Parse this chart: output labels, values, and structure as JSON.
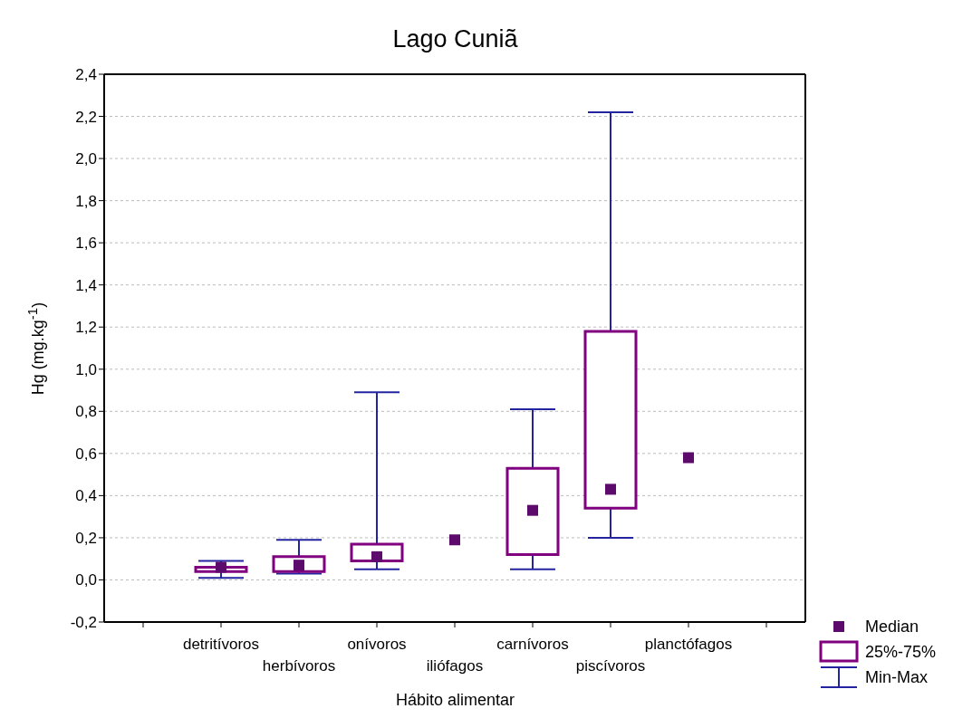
{
  "chart_data": {
    "type": "box",
    "title": "Lago Cuniã",
    "xlabel": "Hábito alimentar",
    "ylabel": "Hg (mg.kg$^{-1}$)",
    "categories": [
      "detritívoros",
      "herbívoros",
      "onívoros",
      "iliófagos",
      "carnívoros",
      "piscívoros",
      "planctófagos"
    ],
    "series": [
      {
        "type": "scatter",
        "name": "Median",
        "color": "#5c0a6c",
        "marker": "square",
        "x": [
          "detritívoros",
          "herbívoros",
          "onívoros",
          "iliófagos",
          "carnívoros",
          "piscívoros",
          "planctófagos"
        ],
        "values": [
          0.06,
          0.07,
          0.11,
          0.19,
          0.33,
          0.43,
          0.58
        ]
      },
      {
        "type": "box",
        "name": "25%-75%",
        "color": "#800080",
        "boxes": [
          {
            "low": 0.01,
            "q1": 0.04,
            "q3": 0.06,
            "high": 0.09
          },
          {
            "low": 0.03,
            "q1": 0.04,
            "q3": 0.11,
            "high": 0.19
          },
          {
            "low": 0.05,
            "q1": 0.09,
            "q3": 0.17,
            "high": 0.89
          },
          null,
          {
            "low": 0.05,
            "q1": 0.12,
            "q3": 0.53,
            "high": 0.81
          },
          {
            "low": 0.2,
            "q1": 0.34,
            "q3": 1.18,
            "high": 2.22
          },
          null
        ]
      }
    ],
    "annotations": [
      "Min-Max"
    ],
    "ylim": [
      -0.2,
      2.4
    ],
    "yticks": [
      {
        "value": -0.2,
        "label": "-0,2"
      },
      {
        "value": 0,
        "label": "0,0"
      },
      {
        "value": 0.2,
        "label": "0,2"
      },
      {
        "value": 0.4,
        "label": "0,4"
      },
      {
        "value": 0.6,
        "label": "0,6"
      },
      {
        "value": 0.8,
        "label": "0,8"
      },
      {
        "value": 1.0,
        "label": "1,0"
      },
      {
        "value": 1.2,
        "label": "1,2"
      },
      {
        "value": 1.4,
        "label": "1,4"
      },
      {
        "value": 1.6,
        "label": "1,6"
      },
      {
        "value": 1.8,
        "label": "1,8"
      },
      {
        "value": 2.0,
        "label": "2,0"
      },
      {
        "value": 2.2,
        "label": "2,2"
      },
      {
        "value": 2.4,
        "label": "2,4"
      }
    ],
    "grid": "y",
    "legend": "bottom right"
  }
}
